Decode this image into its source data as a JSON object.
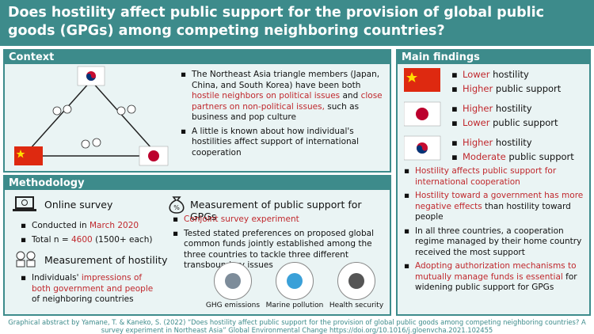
{
  "header": {
    "title": "Does hostility affect public support for the provision of global public goods (GPGs) among competing neighboring countries?"
  },
  "context": {
    "heading": "Context",
    "bullets": [
      [
        {
          "text": "The Northeast Asia triangle members (Japan, China, and South Korea) have been both "
        },
        {
          "text": "hostile neighbors on political issues",
          "emphasis": true
        },
        {
          "text": " and "
        },
        {
          "text": "close partners on non-political issues,",
          "emphasis": true
        },
        {
          "text": " such as business and pop culture"
        }
      ],
      [
        {
          "text": "A little is known about how individual's hostilities affect support of international cooperation"
        }
      ]
    ]
  },
  "methodology": {
    "heading": "Methodology",
    "online_survey": {
      "title": "Online survey",
      "bullets": [
        [
          {
            "text": "Conducted in "
          },
          {
            "text": "March 2020",
            "emphasis": true
          }
        ],
        [
          {
            "text": "Total n = "
          },
          {
            "text": "4600",
            "emphasis": true
          },
          {
            "text": " (1500+ each)"
          }
        ]
      ]
    },
    "hostility": {
      "title": "Measurement of hostility",
      "bullets": [
        [
          {
            "text": "Individuals' "
          },
          {
            "text": "impressions of both government and people",
            "emphasis": true
          },
          {
            "text": " of neighboring countries"
          }
        ]
      ]
    },
    "gpg": {
      "title": "Measurement of public support for GPGs",
      "bullets": [
        [
          {
            "text": "Conjoint survey experiment",
            "emphasis": true
          }
        ],
        [
          {
            "text": "Tested stated preferences on proposed global common funds jointly established among the three countries to tackle three different transboundary issues"
          }
        ]
      ],
      "icons": [
        "GHG emissions",
        "Marine pollution",
        "Health security"
      ]
    }
  },
  "findings": {
    "heading": "Main findings",
    "countries": [
      {
        "bullets": [
          [
            {
              "text": "Lower",
              "emphasis": true
            },
            {
              "text": " hostility"
            }
          ],
          [
            {
              "text": "Higher",
              "emphasis": true
            },
            {
              "text": " public support"
            }
          ]
        ]
      },
      {
        "bullets": [
          [
            {
              "text": "Higher",
              "emphasis": true
            },
            {
              "text": " hostility"
            }
          ],
          [
            {
              "text": "Lower",
              "emphasis": true
            },
            {
              "text": " public support"
            }
          ]
        ]
      },
      {
        "bullets": [
          [
            {
              "text": "Higher",
              "emphasis": true
            },
            {
              "text": " hostility"
            }
          ],
          [
            {
              "text": "Moderate",
              "emphasis": true
            },
            {
              "text": " public support"
            }
          ]
        ]
      }
    ],
    "bullets": [
      [
        {
          "text": "Hostility affects public support for international cooperation",
          "emphasis": true
        }
      ],
      [
        {
          "text": "Hostility toward a government has more negative effects",
          "emphasis": true
        },
        {
          "text": " than hostility toward people"
        }
      ],
      [
        {
          "text": "In all three countries, a cooperation regime managed by their home country received the most support"
        }
      ],
      [
        {
          "text": "Adopting authorization mechanisms to mutually manage funds is essential",
          "emphasis": true
        },
        {
          "text": " for widening public support for GPGs"
        }
      ]
    ]
  },
  "footer": "Graphical abstract by Yamane, T. & Kaneko, S. (2022) “Does hostility affect public support for the provision of global public goods among competing neighboring countries? A survey experiment in Northeast Asia” Global Environmental Change https://doi.org/10.1016/j.gloenvcha.2021.102455"
}
